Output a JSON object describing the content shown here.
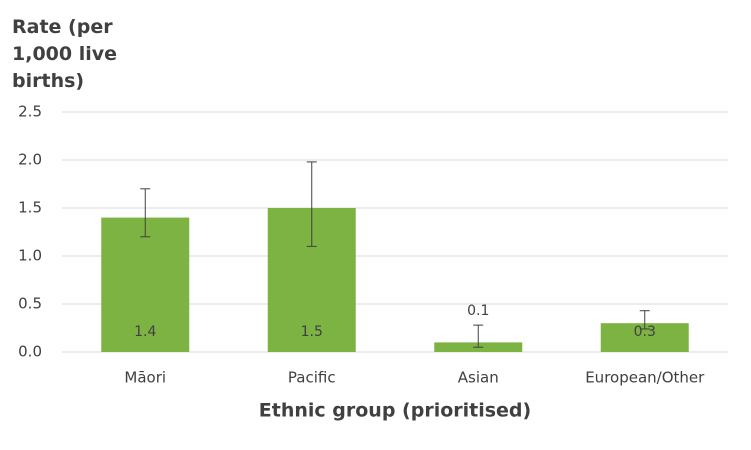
{
  "chart_data": {
    "type": "bar",
    "ylabel": "Rate (per 1,000 live births)",
    "xlabel": "Ethnic group (prioritised)",
    "categories": [
      "Māori",
      "Pacific",
      "Asian",
      "European/Other"
    ],
    "values": [
      1.4,
      1.5,
      0.1,
      0.3
    ],
    "lower": [
      1.2,
      1.1,
      0.05,
      0.24
    ],
    "upper": [
      1.7,
      1.98,
      0.28,
      0.43
    ],
    "color": "#7cb342",
    "ylim": [
      0,
      2.5
    ],
    "yticks": [
      {
        "value": 0,
        "label": "0.0"
      },
      0.5,
      {
        "value": 1,
        "label": "1.0"
      },
      1.5,
      {
        "value": 2,
        "label": "2.0"
      },
      2.5
    ],
    "grid": true
  }
}
